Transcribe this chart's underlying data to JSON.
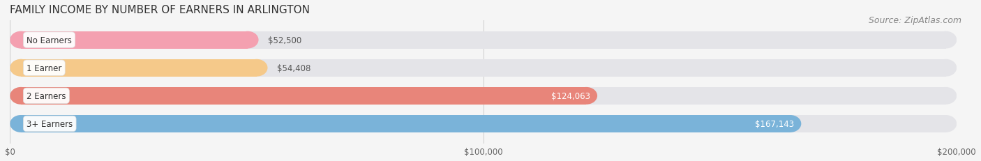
{
  "title": "FAMILY INCOME BY NUMBER OF EARNERS IN ARLINGTON",
  "source": "Source: ZipAtlas.com",
  "categories": [
    "No Earners",
    "1 Earner",
    "2 Earners",
    "3+ Earners"
  ],
  "values": [
    52500,
    54408,
    124063,
    167143
  ],
  "labels": [
    "$52,500",
    "$54,408",
    "$124,063",
    "$167,143"
  ],
  "bar_colors": [
    "#f4a0b0",
    "#f5c98a",
    "#e8857a",
    "#7ab3d9"
  ],
  "bar_bg_color": "#e4e4e8",
  "label_colors": [
    "#555555",
    "#555555",
    "#ffffff",
    "#ffffff"
  ],
  "xlim": [
    0,
    200000
  ],
  "xticks": [
    0,
    100000,
    200000
  ],
  "xtick_labels": [
    "$0",
    "$100,000",
    "$200,000"
  ],
  "title_fontsize": 11,
  "source_fontsize": 9,
  "bar_height": 0.62,
  "figsize": [
    14.06,
    2.32
  ],
  "dpi": 100,
  "background_color": "#f5f5f5"
}
